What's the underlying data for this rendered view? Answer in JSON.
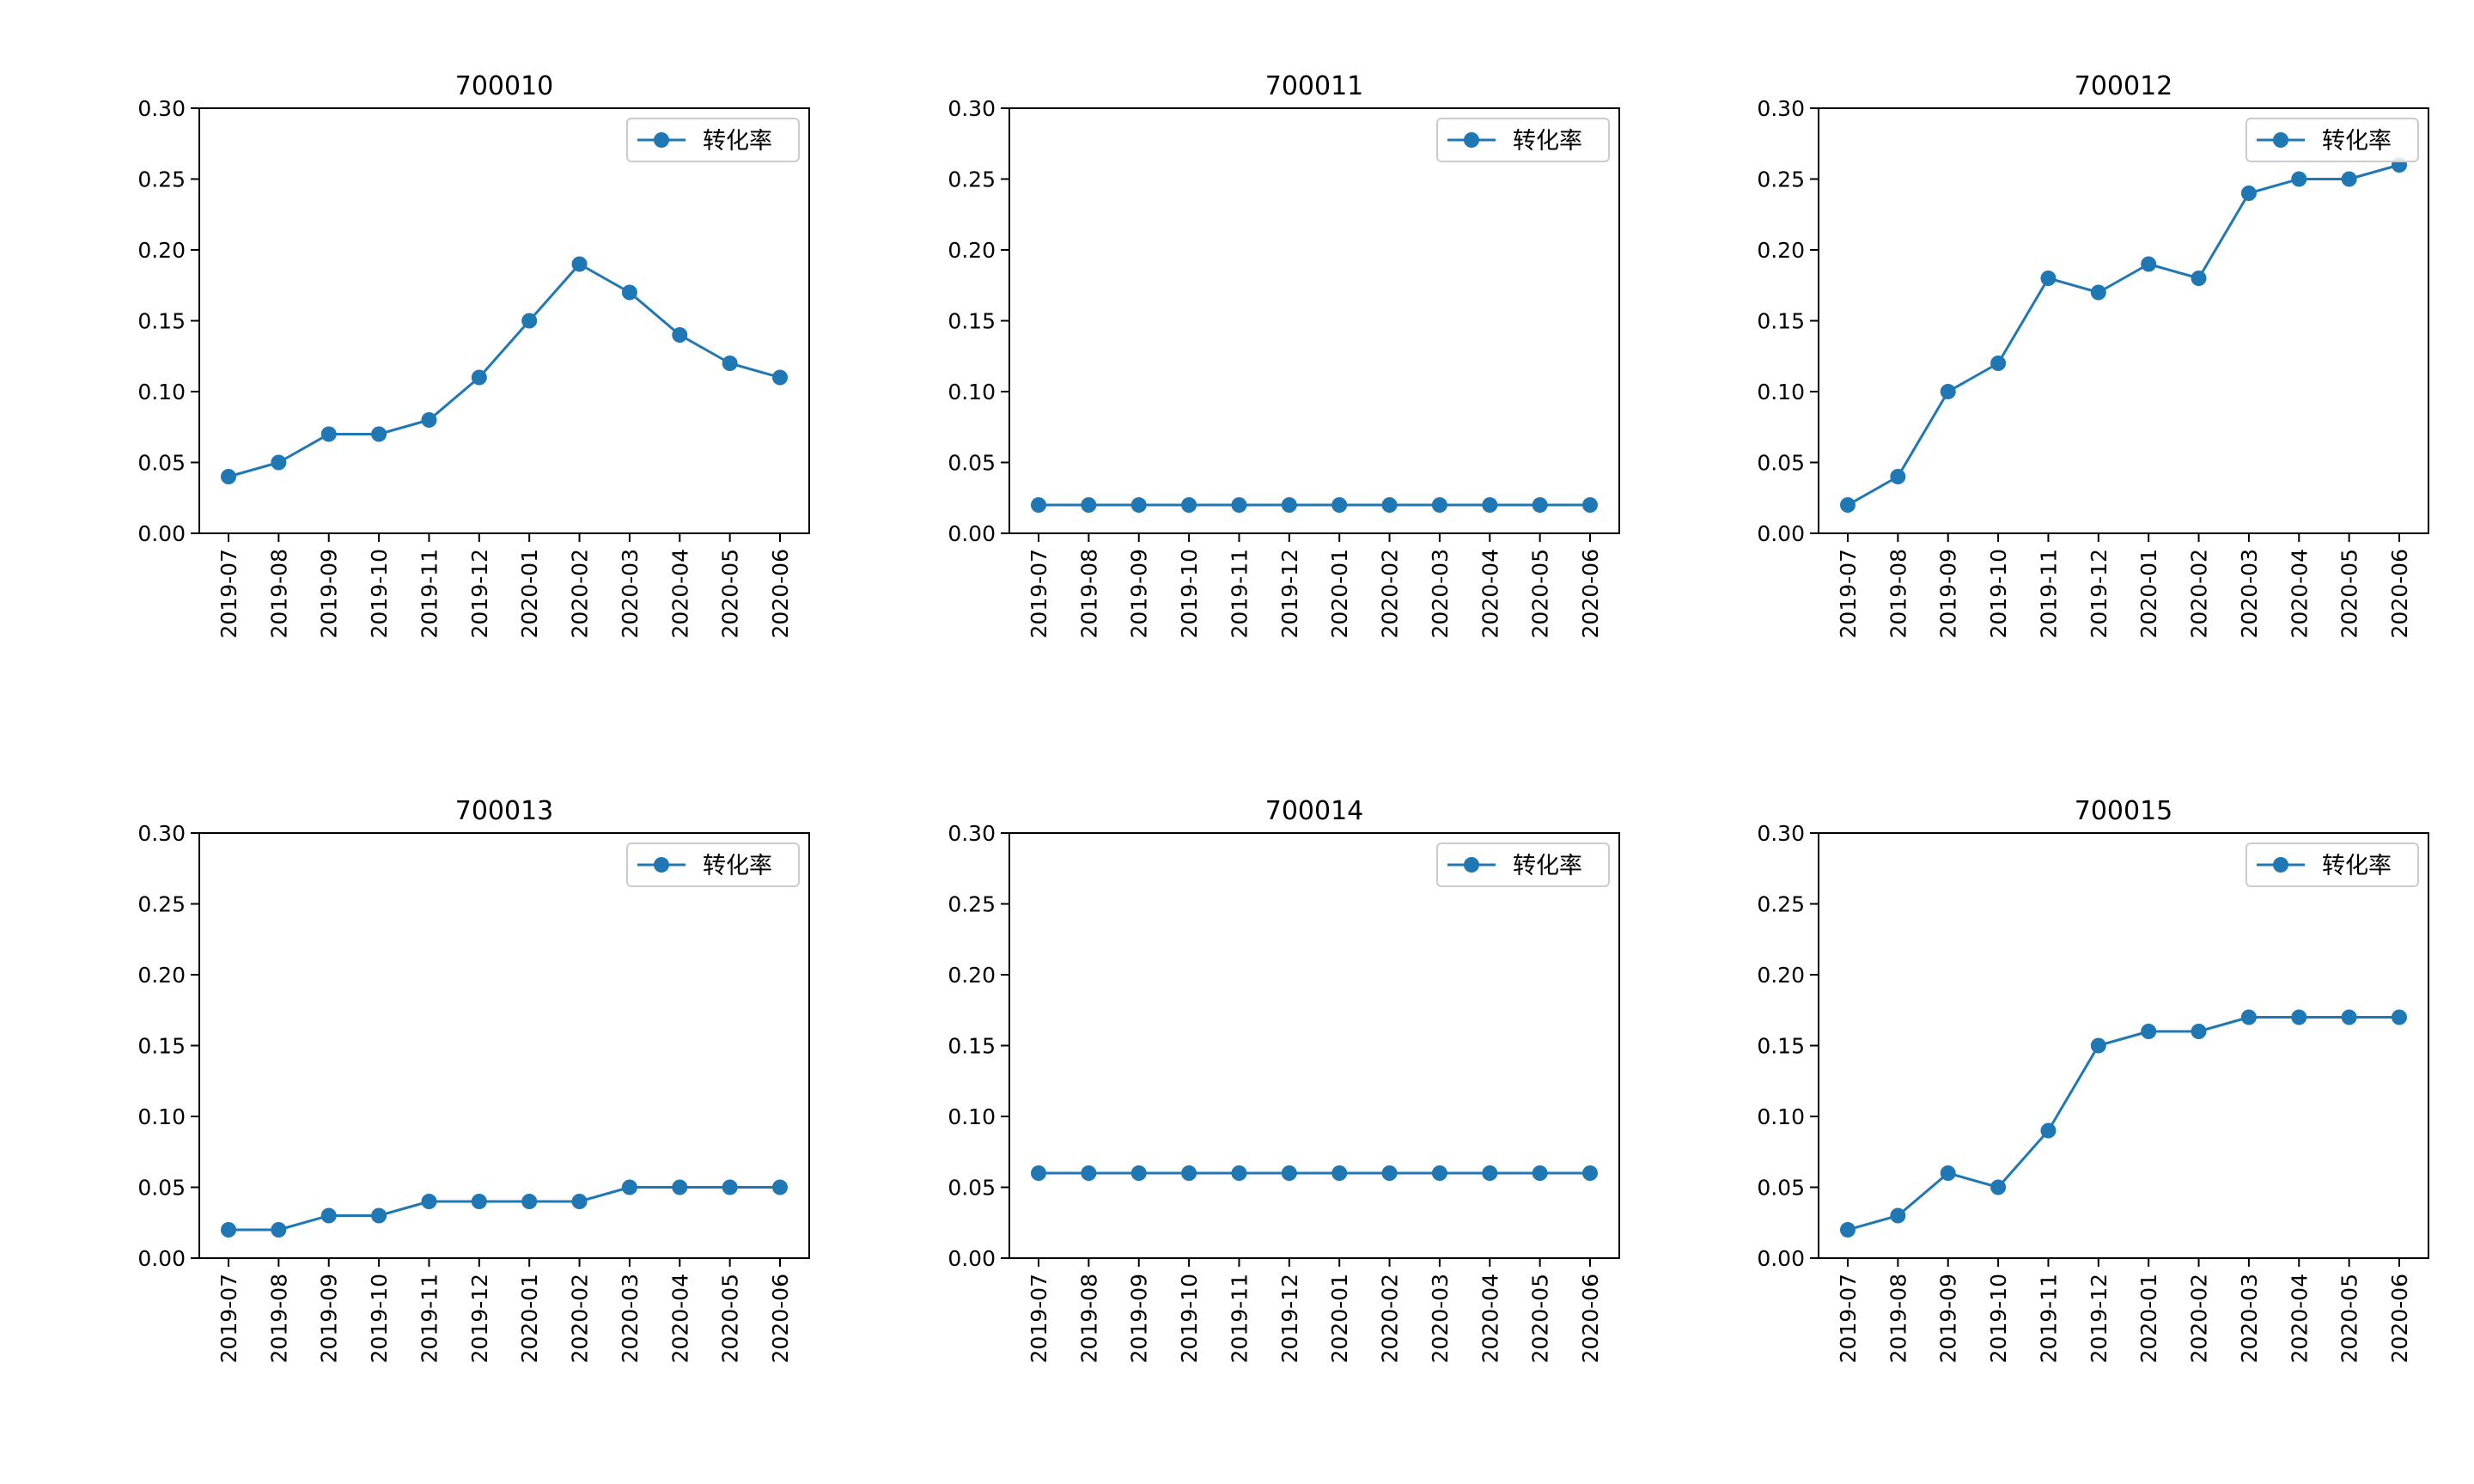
{
  "chart_data": [
    {
      "type": "line",
      "title": "700010",
      "categories": [
        "2019-07",
        "2019-08",
        "2019-09",
        "2019-10",
        "2019-11",
        "2019-12",
        "2020-01",
        "2020-02",
        "2020-03",
        "2020-04",
        "2020-05",
        "2020-06"
      ],
      "series": [
        {
          "name": "转化率",
          "values": [
            0.04,
            0.05,
            0.07,
            0.07,
            0.08,
            0.11,
            0.15,
            0.19,
            0.17,
            0.14,
            0.12,
            0.11
          ]
        }
      ],
      "ylim": [
        0,
        0.3
      ],
      "yticks": [
        "0.00",
        "0.05",
        "0.10",
        "0.15",
        "0.20",
        "0.25",
        "0.30"
      ],
      "legend": "top-right",
      "grid": false
    },
    {
      "type": "line",
      "title": "700011",
      "categories": [
        "2019-07",
        "2019-08",
        "2019-09",
        "2019-10",
        "2019-11",
        "2019-12",
        "2020-01",
        "2020-02",
        "2020-03",
        "2020-04",
        "2020-05",
        "2020-06"
      ],
      "series": [
        {
          "name": "转化率",
          "values": [
            0.02,
            0.02,
            0.02,
            0.02,
            0.02,
            0.02,
            0.02,
            0.02,
            0.02,
            0.02,
            0.02,
            0.02
          ]
        }
      ],
      "ylim": [
        0,
        0.3
      ],
      "yticks": [
        "0.00",
        "0.05",
        "0.10",
        "0.15",
        "0.20",
        "0.25",
        "0.30"
      ],
      "legend": "top-right",
      "grid": false
    },
    {
      "type": "line",
      "title": "700012",
      "categories": [
        "2019-07",
        "2019-08",
        "2019-09",
        "2019-10",
        "2019-11",
        "2019-12",
        "2020-01",
        "2020-02",
        "2020-03",
        "2020-04",
        "2020-05",
        "2020-06"
      ],
      "series": [
        {
          "name": "转化率",
          "values": [
            0.02,
            0.04,
            0.1,
            0.12,
            0.18,
            0.17,
            0.19,
            0.18,
            0.24,
            0.25,
            0.25,
            0.26
          ]
        }
      ],
      "ylim": [
        0,
        0.3
      ],
      "yticks": [
        "0.00",
        "0.05",
        "0.10",
        "0.15",
        "0.20",
        "0.25",
        "0.30"
      ],
      "legend": "top-right",
      "grid": false
    },
    {
      "type": "line",
      "title": "700013",
      "categories": [
        "2019-07",
        "2019-08",
        "2019-09",
        "2019-10",
        "2019-11",
        "2019-12",
        "2020-01",
        "2020-02",
        "2020-03",
        "2020-04",
        "2020-05",
        "2020-06"
      ],
      "series": [
        {
          "name": "转化率",
          "values": [
            0.02,
            0.02,
            0.03,
            0.03,
            0.04,
            0.04,
            0.04,
            0.04,
            0.05,
            0.05,
            0.05,
            0.05
          ]
        }
      ],
      "ylim": [
        0,
        0.3
      ],
      "yticks": [
        "0.00",
        "0.05",
        "0.10",
        "0.15",
        "0.20",
        "0.25",
        "0.30"
      ],
      "legend": "top-right",
      "grid": false
    },
    {
      "type": "line",
      "title": "700014",
      "categories": [
        "2019-07",
        "2019-08",
        "2019-09",
        "2019-10",
        "2019-11",
        "2019-12",
        "2020-01",
        "2020-02",
        "2020-03",
        "2020-04",
        "2020-05",
        "2020-06"
      ],
      "series": [
        {
          "name": "转化率",
          "values": [
            0.06,
            0.06,
            0.06,
            0.06,
            0.06,
            0.06,
            0.06,
            0.06,
            0.06,
            0.06,
            0.06,
            0.06
          ]
        }
      ],
      "ylim": [
        0,
        0.3
      ],
      "yticks": [
        "0.00",
        "0.05",
        "0.10",
        "0.15",
        "0.20",
        "0.25",
        "0.30"
      ],
      "legend": "top-right",
      "grid": false
    },
    {
      "type": "line",
      "title": "700015",
      "categories": [
        "2019-07",
        "2019-08",
        "2019-09",
        "2019-10",
        "2019-11",
        "2019-12",
        "2020-01",
        "2020-02",
        "2020-03",
        "2020-04",
        "2020-05",
        "2020-06"
      ],
      "series": [
        {
          "name": "转化率",
          "values": [
            0.02,
            0.03,
            0.06,
            0.05,
            0.09,
            0.15,
            0.16,
            0.16,
            0.17,
            0.17,
            0.17,
            0.17
          ]
        }
      ],
      "ylim": [
        0,
        0.3
      ],
      "yticks": [
        "0.00",
        "0.05",
        "0.10",
        "0.15",
        "0.20",
        "0.25",
        "0.30"
      ],
      "legend": "top-right",
      "grid": false
    }
  ],
  "style": {
    "line_color": "#1f77b4",
    "axis_color": "#000000",
    "background": "#ffffff",
    "legend_border": "#cccccc"
  }
}
